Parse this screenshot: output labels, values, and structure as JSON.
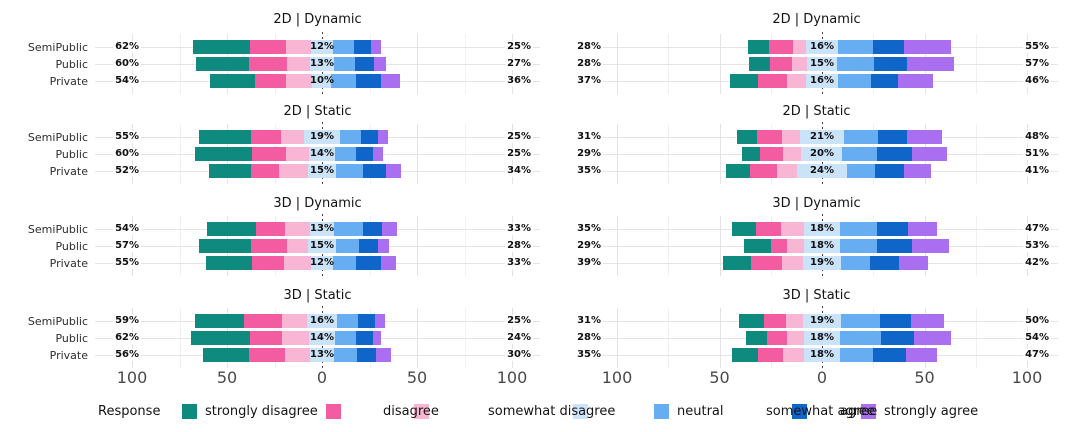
{
  "legend": {
    "title": "Response",
    "items": [
      {
        "label": "strongly disagree",
        "color": "#0E8A7E"
      },
      {
        "label": "disagree",
        "color": "#F45CA2"
      },
      {
        "label": "somewhat disagree",
        "color": "#F9B5D4"
      },
      {
        "label": "neutral",
        "color": "#CBE3F9"
      },
      {
        "label": "somewhat agree",
        "color": "#66ADF2"
      },
      {
        "label": "agree",
        "color": "#1065C8"
      },
      {
        "label": "strongly agree",
        "color": "#A96FF0"
      }
    ]
  },
  "chart_data": {
    "type": "bar",
    "variant": "diverging-stacked-likert",
    "grid": true,
    "levels": [
      "strongly disagree",
      "disagree",
      "somewhat disagree",
      "neutral",
      "somewhat agree",
      "agree",
      "strongly agree"
    ],
    "level_colors": [
      "#0E8A7E",
      "#F45CA2",
      "#F9B5D4",
      "#CBE3F9",
      "#66ADF2",
      "#1065C8",
      "#A96FF0"
    ],
    "axis_ticks": [
      "100",
      "50",
      "0",
      "50",
      "100"
    ],
    "axis_tick_values": [
      -100,
      -50,
      0,
      50,
      100
    ],
    "row_categories": [
      "SemiPublic",
      "Public",
      "Private"
    ],
    "facet_titles": [
      "2D | Dynamic",
      "2D | Static",
      "3D | Dynamic",
      "3D | Static"
    ],
    "panels": [
      {
        "side": "left",
        "facets": [
          {
            "title": "2D | Dynamic",
            "rows": [
              {
                "label": "SemiPublic",
                "left": "62%",
                "neutral": "12%",
                "right": "25%",
                "segments": [
                  30,
                  19,
                  13,
                  12,
                  11,
                  9,
                  5
                ]
              },
              {
                "label": "Public",
                "left": "60%",
                "neutral": "13%",
                "right": "27%",
                "segments": [
                  28,
                  20,
                  12,
                  13,
                  11,
                  10,
                  6
                ]
              },
              {
                "label": "Private",
                "left": "54%",
                "neutral": "10%",
                "right": "36%",
                "segments": [
                  24,
                  16,
                  14,
                  10,
                  13,
                  13,
                  10
                ]
              }
            ]
          },
          {
            "title": "2D | Static",
            "rows": [
              {
                "label": "SemiPublic",
                "left": "55%",
                "neutral": "19%",
                "right": "25%",
                "segments": [
                  27,
                  16,
                  12,
                  19,
                  11,
                  9,
                  5
                ]
              },
              {
                "label": "Public",
                "left": "60%",
                "neutral": "14%",
                "right": "25%",
                "segments": [
                  30,
                  18,
                  12,
                  14,
                  11,
                  9,
                  5
                ]
              },
              {
                "label": "Private",
                "left": "52%",
                "neutral": "15%",
                "right": "34%",
                "segments": [
                  22,
                  15,
                  15,
                  15,
                  14,
                  12,
                  8
                ]
              }
            ]
          },
          {
            "title": "3D | Dynamic",
            "rows": [
              {
                "label": "SemiPublic",
                "left": "54%",
                "neutral": "13%",
                "right": "33%",
                "segments": [
                  26,
                  15,
                  13,
                  13,
                  15,
                  10,
                  8
                ]
              },
              {
                "label": "Public",
                "left": "57%",
                "neutral": "15%",
                "right": "28%",
                "segments": [
                  27,
                  19,
                  11,
                  15,
                  12,
                  10,
                  6
                ]
              },
              {
                "label": "Private",
                "left": "55%",
                "neutral": "12%",
                "right": "33%",
                "segments": [
                  24,
                  17,
                  14,
                  12,
                  12,
                  13,
                  8
                ]
              }
            ]
          },
          {
            "title": "3D | Static",
            "rows": [
              {
                "label": "SemiPublic",
                "left": "59%",
                "neutral": "16%",
                "right": "25%",
                "segments": [
                  26,
                  20,
                  13,
                  16,
                  11,
                  9,
                  5
                ]
              },
              {
                "label": "Public",
                "left": "62%",
                "neutral": "14%",
                "right": "24%",
                "segments": [
                  31,
                  17,
                  14,
                  14,
                  11,
                  9,
                  4
                ]
              },
              {
                "label": "Private",
                "left": "56%",
                "neutral": "13%",
                "right": "30%",
                "segments": [
                  24,
                  19,
                  13,
                  13,
                  12,
                  10,
                  8
                ]
              }
            ]
          }
        ]
      },
      {
        "side": "right",
        "facets": [
          {
            "title": "2D | Dynamic",
            "rows": [
              {
                "label": "SemiPublic",
                "left": "28%",
                "neutral": "16%",
                "right": "55%",
                "segments": [
                  10,
                  12,
                  6,
                  16,
                  17,
                  15,
                  23
                ]
              },
              {
                "label": "Public",
                "left": "28%",
                "neutral": "15%",
                "right": "57%",
                "segments": [
                  10,
                  11,
                  7,
                  15,
                  18,
                  16,
                  23
                ]
              },
              {
                "label": "Private",
                "left": "37%",
                "neutral": "16%",
                "right": "46%",
                "segments": [
                  14,
                  14,
                  9,
                  16,
                  16,
                  13,
                  17
                ]
              }
            ]
          },
          {
            "title": "2D | Static",
            "rows": [
              {
                "label": "SemiPublic",
                "left": "31%",
                "neutral": "21%",
                "right": "48%",
                "segments": [
                  10,
                  12,
                  9,
                  21,
                  17,
                  14,
                  17
                ]
              },
              {
                "label": "Public",
                "left": "29%",
                "neutral": "20%",
                "right": "51%",
                "segments": [
                  9,
                  11,
                  9,
                  20,
                  17,
                  17,
                  17
                ]
              },
              {
                "label": "Private",
                "left": "35%",
                "neutral": "24%",
                "right": "41%",
                "segments": [
                  12,
                  13,
                  10,
                  24,
                  14,
                  14,
                  13
                ]
              }
            ]
          },
          {
            "title": "3D | Dynamic",
            "rows": [
              {
                "label": "SemiPublic",
                "left": "35%",
                "neutral": "18%",
                "right": "47%",
                "segments": [
                  12,
                  12,
                  11,
                  18,
                  18,
                  15,
                  14
                ]
              },
              {
                "label": "Public",
                "left": "29%",
                "neutral": "18%",
                "right": "53%",
                "segments": [
                  13,
                  8,
                  8,
                  18,
                  18,
                  17,
                  18
                ]
              },
              {
                "label": "Private",
                "left": "39%",
                "neutral": "19%",
                "right": "42%",
                "segments": [
                  14,
                  15,
                  10,
                  19,
                  14,
                  14,
                  14
                ]
              }
            ]
          },
          {
            "title": "3D | Static",
            "rows": [
              {
                "label": "SemiPublic",
                "left": "31%",
                "neutral": "19%",
                "right": "50%",
                "segments": [
                  12,
                  11,
                  8,
                  19,
                  19,
                  15,
                  16
                ]
              },
              {
                "label": "Public",
                "left": "28%",
                "neutral": "18%",
                "right": "54%",
                "segments": [
                  10,
                  10,
                  8,
                  18,
                  20,
                  16,
                  18
                ]
              },
              {
                "label": "Private",
                "left": "35%",
                "neutral": "18%",
                "right": "47%",
                "segments": [
                  13,
                  12,
                  10,
                  18,
                  16,
                  16,
                  15
                ]
              }
            ]
          }
        ]
      }
    ]
  }
}
